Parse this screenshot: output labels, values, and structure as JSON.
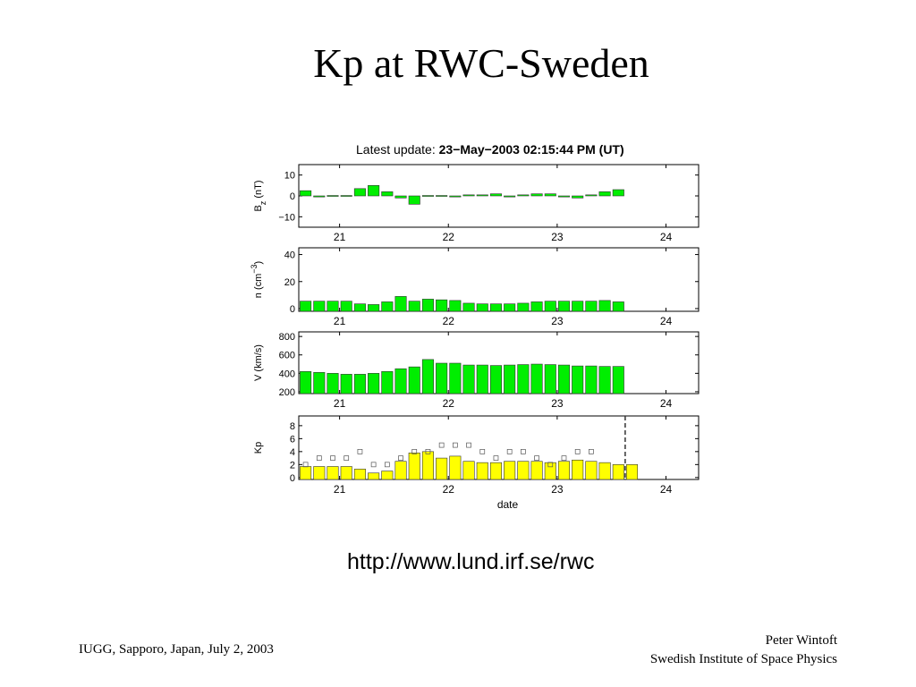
{
  "slide": {
    "title": "Kp at RWC-Sweden",
    "url": "http://www.lund.irf.se/rwc",
    "footer_left": "IUGG, Sapporo, Japan, July 2, 2003",
    "footer_right_name": "Peter Wintoft",
    "footer_right_org": "Swedish Institute of Space Physics"
  },
  "chart_data": {
    "type": "bar",
    "header_prefix": "Latest update: ",
    "header_value": "23−May−2003  02:15:44 PM (UT)",
    "x_ticks": [
      "21",
      "22",
      "23",
      "24"
    ],
    "xlabel": "date",
    "panels": [
      {
        "id": "bz",
        "ylabel": "B_z (nT)",
        "ylim": [
          -15,
          15
        ],
        "yticks": [
          10,
          0,
          -10
        ],
        "ytick_labels": [
          "10",
          "0",
          "−10"
        ],
        "color": "#00ee00",
        "values": [
          2.5,
          -0.5,
          0.2,
          0.2,
          3.5,
          5,
          2,
          -1,
          -4,
          0.2,
          0.2,
          -0.5,
          0.5,
          0.5,
          1,
          -0.5,
          0.5,
          1,
          1,
          -0.5,
          -1,
          0.5,
          2,
          3
        ]
      },
      {
        "id": "n",
        "ylabel": "n (cm−3)",
        "ylim": [
          -2,
          45
        ],
        "yticks": [
          40,
          20,
          0
        ],
        "ytick_labels": [
          "40",
          "20",
          "0"
        ],
        "color": "#00ee00",
        "values": [
          5.5,
          5.5,
          5.5,
          5.5,
          3.5,
          3,
          5,
          9,
          5.5,
          7,
          6.5,
          6,
          4,
          3.5,
          3.5,
          3.5,
          4,
          5,
          5.5,
          5.5,
          5.5,
          5.5,
          6,
          5
        ]
      },
      {
        "id": "v",
        "ylabel": "V (km/s)",
        "ylim": [
          180,
          850
        ],
        "yticks": [
          800,
          600,
          400,
          200
        ],
        "ytick_labels": [
          "800",
          "600",
          "400",
          "200"
        ],
        "color": "#00ee00",
        "values": [
          420,
          410,
          400,
          390,
          390,
          400,
          420,
          450,
          470,
          550,
          510,
          510,
          490,
          490,
          485,
          490,
          495,
          500,
          495,
          490,
          480,
          480,
          475,
          475
        ]
      },
      {
        "id": "kp",
        "ylabel": "Kp",
        "ylim": [
          -0.3,
          9.5
        ],
        "yticks": [
          8,
          6,
          4,
          2,
          0
        ],
        "ytick_labels": [
          "8",
          "6",
          "4",
          "2",
          "0"
        ],
        "color": "#ffff00",
        "values": [
          1.7,
          1.7,
          1.7,
          1.7,
          1.3,
          0.7,
          1.0,
          2.5,
          3.8,
          4.0,
          3.0,
          3.3,
          2.5,
          2.3,
          2.3,
          2.5,
          2.5,
          2.5,
          2.3,
          2.5,
          2.7,
          2.5,
          2.3,
          2.0,
          2.0
        ],
        "markers": [
          2,
          3,
          3,
          3,
          4,
          2,
          2,
          3,
          4,
          4,
          5,
          5,
          5,
          4,
          3,
          4,
          4,
          3,
          2,
          3,
          4,
          4
        ],
        "now_line_x": 23.625
      }
    ],
    "xlim": [
      20.625,
      24.3
    ]
  }
}
